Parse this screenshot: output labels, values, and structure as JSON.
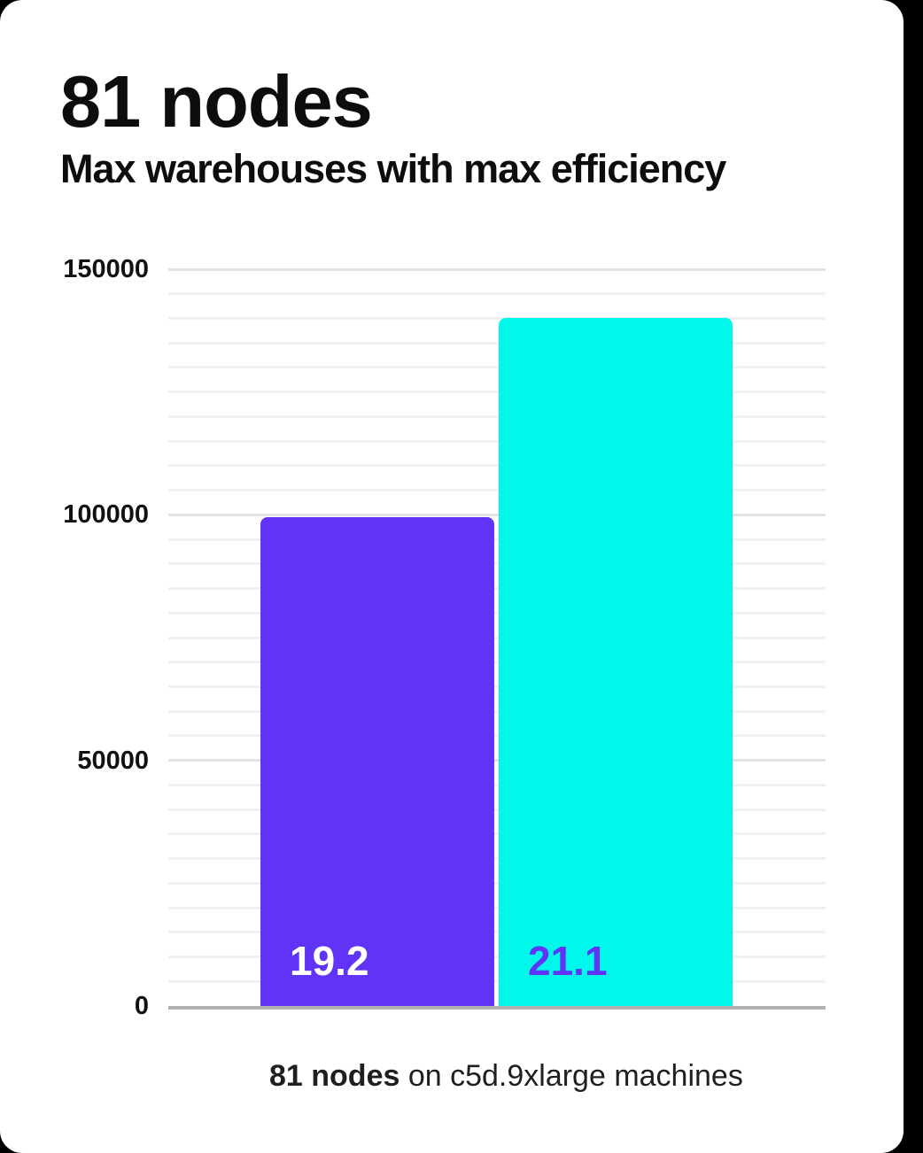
{
  "title": "81 nodes",
  "subtitle": "Max warehouses with max efficiency",
  "caption": {
    "bold": "81 nodes",
    "rest": " on c5d.9xlarge machines"
  },
  "chart_data": {
    "type": "bar",
    "title": "81 nodes",
    "subtitle": "Max warehouses with max efficiency",
    "series": [
      {
        "label": "19.2",
        "value": 99500,
        "bar_color": "#6133f7",
        "label_color": "#ffffff"
      },
      {
        "label": "21.1",
        "value": 140000,
        "bar_color": "#00f8ea",
        "label_color": "#6133f7"
      }
    ],
    "ylabel": "",
    "xlabel": "",
    "ylim": [
      0,
      150000
    ],
    "yticks": [
      0,
      50000,
      100000,
      150000
    ],
    "minor_grid_step": 5000,
    "grid": true,
    "axis_color": "#b0b0b0",
    "major_grid_color": "#e2e2e2",
    "minor_grid_color": "#f1f1f1"
  }
}
